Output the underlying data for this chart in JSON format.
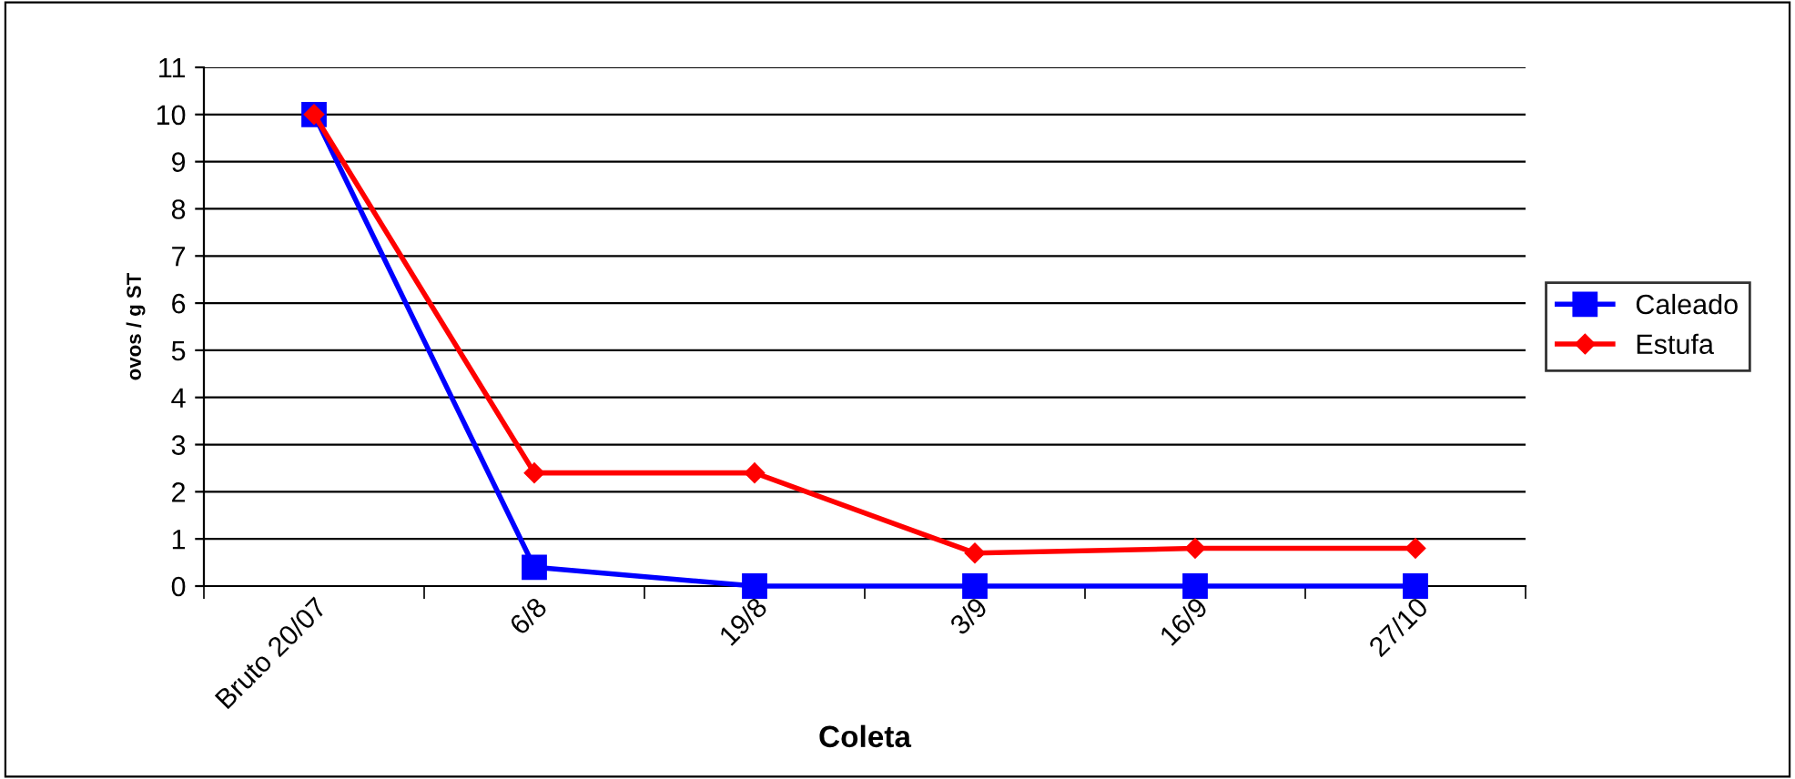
{
  "chart_data": {
    "type": "line",
    "xlabel": "Coleta",
    "ylabel": "ovos / g ST",
    "categories": [
      "Bruto 20/07",
      "6/8",
      "19/8",
      "3/9",
      "16/9",
      "27/10"
    ],
    "series": [
      {
        "name": "Caleado",
        "color": "#0000ff",
        "marker": "square",
        "values": [
          10,
          0.4,
          0,
          0,
          0,
          0
        ]
      },
      {
        "name": "Estufa",
        "color": "#ff0000",
        "marker": "diamond",
        "values": [
          10,
          2.4,
          2.4,
          0.7,
          0.8,
          0.8
        ]
      }
    ],
    "ylim": [
      0,
      11
    ],
    "yticks": [
      0,
      1,
      2,
      3,
      4,
      5,
      6,
      7,
      8,
      9,
      10,
      11
    ],
    "grid": "y",
    "legend": "right",
    "line_style": "solid"
  }
}
